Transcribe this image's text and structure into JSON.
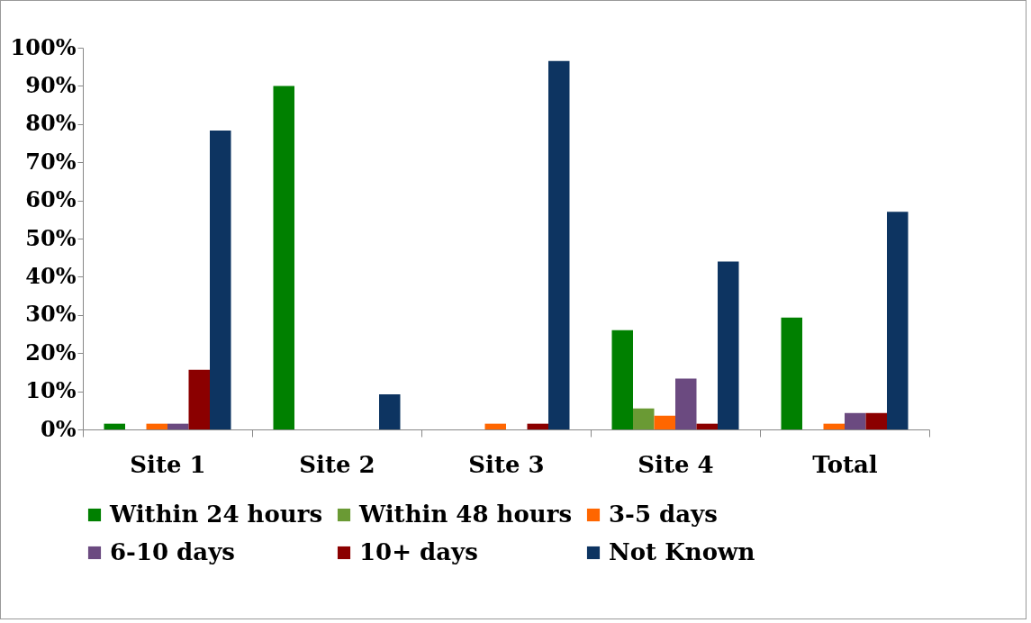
{
  "chart_data": {
    "type": "bar",
    "categories": [
      "Site 1",
      "Site 2",
      "Site 3",
      "Site 4",
      "Total"
    ],
    "series": [
      {
        "name": "Within 24 hours",
        "color": "#008000",
        "values": [
          1.5,
          90,
          0,
          26,
          29.3
        ]
      },
      {
        "name": "Within 48 hours",
        "color": "#6a9a34",
        "values": [
          0,
          0,
          0,
          5.5,
          0
        ]
      },
      {
        "name": "3-5 days",
        "color": "#ff6600",
        "values": [
          1.5,
          0,
          1.5,
          3.6,
          1.5
        ]
      },
      {
        "name": "6-10 days",
        "color": "#6b4a80",
        "values": [
          1.5,
          0,
          0,
          13.3,
          4.3
        ]
      },
      {
        "name": "10+ days",
        "color": "#8b0000",
        "values": [
          15.6,
          0,
          1.5,
          1.5,
          4.3
        ]
      },
      {
        "name": "Not Known",
        "color": "#0d3461",
        "values": [
          78.3,
          9.2,
          96.5,
          44,
          57
        ]
      }
    ],
    "ylim": [
      0,
      100
    ],
    "yticks": [
      {
        "value": 0,
        "label": "0%"
      },
      {
        "value": 10,
        "label": "10%"
      },
      {
        "value": 20,
        "label": "20%"
      },
      {
        "value": 30,
        "label": "30%"
      },
      {
        "value": 40,
        "label": "40%"
      },
      {
        "value": 50,
        "label": "50%"
      },
      {
        "value": 60,
        "label": "60%"
      },
      {
        "value": 70,
        "label": "70%"
      },
      {
        "value": 80,
        "label": "80%"
      },
      {
        "value": 90,
        "label": "90%"
      },
      {
        "value": 100,
        "label": "100%"
      }
    ],
    "grid": false,
    "legend": "bottom"
  }
}
